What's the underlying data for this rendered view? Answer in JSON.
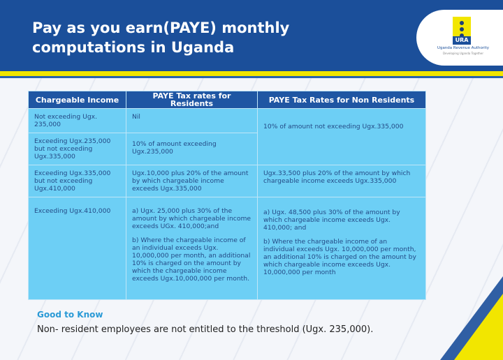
{
  "header": {
    "title_line1": "Pay as you earn(PAYE) monthly",
    "title_line2": "computations in Uganda"
  },
  "logo": {
    "acronym": "URA",
    "name": "Uganda Revenue Authority",
    "tagline": "Developing Uganda Together"
  },
  "colors": {
    "header_blue": "#1b4f9a",
    "accent_yellow": "#f2e600",
    "cell_blue": "#6dcff5"
  },
  "table": {
    "headers": [
      "Chargeable Income",
      "PAYE  Tax  rates for Residents",
      "PAYE  Tax Rates for Non Residents"
    ],
    "rows": [
      {
        "income": "Not exceeding Ugx. 235,000",
        "resident": "Nil",
        "nonresident": "10% of amount not exceeding Ugx.335,000"
      },
      {
        "income": "Exceeding Ugx.235,000 but not exceeding Ugx.335,000",
        "resident": "10% of amount exceeding Ugx.235,000"
      },
      {
        "income": "Exceeding Ugx.335,000 but not exceeding Ugx.410,000",
        "resident": "Ugx.10,000 plus 20% of the amount by which chargeable income exceeds Ugx.335,000",
        "nonresident": "Ugx.33,500 plus 20% of the amount by which chargeable income exceeds Ugx.335,000"
      },
      {
        "income": "Exceeding Ugx.410,000",
        "resident_a": "a)  Ugx. 25,000 plus 30% of the amount by which chargeable income exceeds UGx. 410,000;and",
        "resident_b": "b)  Where the chargeable income of an individual exceeds Ugx. 10,000,000 per month, an additional 10% is charged on the amount by which the chargeable income exceeds Ugx.10,000,000 per month.",
        "nonresident_a": "a)  Ugx. 48,500 plus 30% of the amount by which chargeable income exceeds Ugx. 410,000; and",
        "nonresident_b": "b)  Where the chargeable income of an individual exceeds Ugx. 10,000,000 per month, an additional 10% is charged on the amount by which chargeable income exceeds Ugx. 10,000,000 per month"
      }
    ]
  },
  "footer": {
    "heading": "Good to Know",
    "note": "Non- resident employees are not entitled to the threshold (Ugx. 235,000)."
  }
}
